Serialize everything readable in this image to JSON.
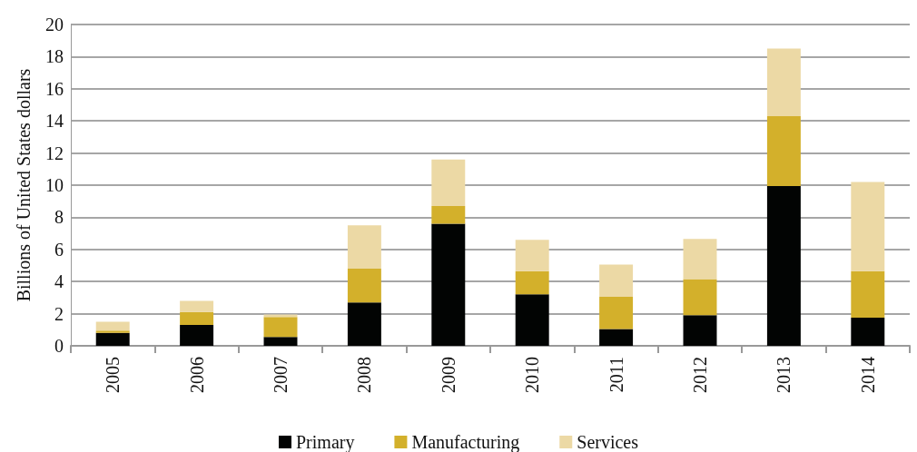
{
  "chart_data": {
    "type": "bar",
    "ylabel": "Billions of United States dollars",
    "categories": [
      "2005",
      "2006",
      "2007",
      "2008",
      "2009",
      "2010",
      "2011",
      "2012",
      "2013",
      "2014"
    ],
    "series": [
      {
        "name": "Primary",
        "color": "#020403",
        "values": [
          0.8,
          1.3,
          0.55,
          2.7,
          7.6,
          3.2,
          1.05,
          1.9,
          9.95,
          1.75
        ]
      },
      {
        "name": "Manufacturing",
        "color": "#d3b02b",
        "values": [
          0.15,
          0.8,
          1.25,
          2.1,
          1.1,
          1.45,
          2.0,
          2.25,
          4.35,
          2.9
        ]
      },
      {
        "name": "Services",
        "color": "#ecd9a5",
        "values": [
          0.55,
          0.7,
          0.15,
          2.7,
          2.9,
          1.95,
          2.0,
          2.5,
          4.2,
          5.55
        ]
      }
    ],
    "stacked": true,
    "ylim": [
      0,
      20
    ],
    "yticks": [
      0,
      2,
      4,
      6,
      8,
      10,
      12,
      14,
      16,
      18,
      20
    ],
    "grid": "y",
    "legend": "bottom"
  }
}
